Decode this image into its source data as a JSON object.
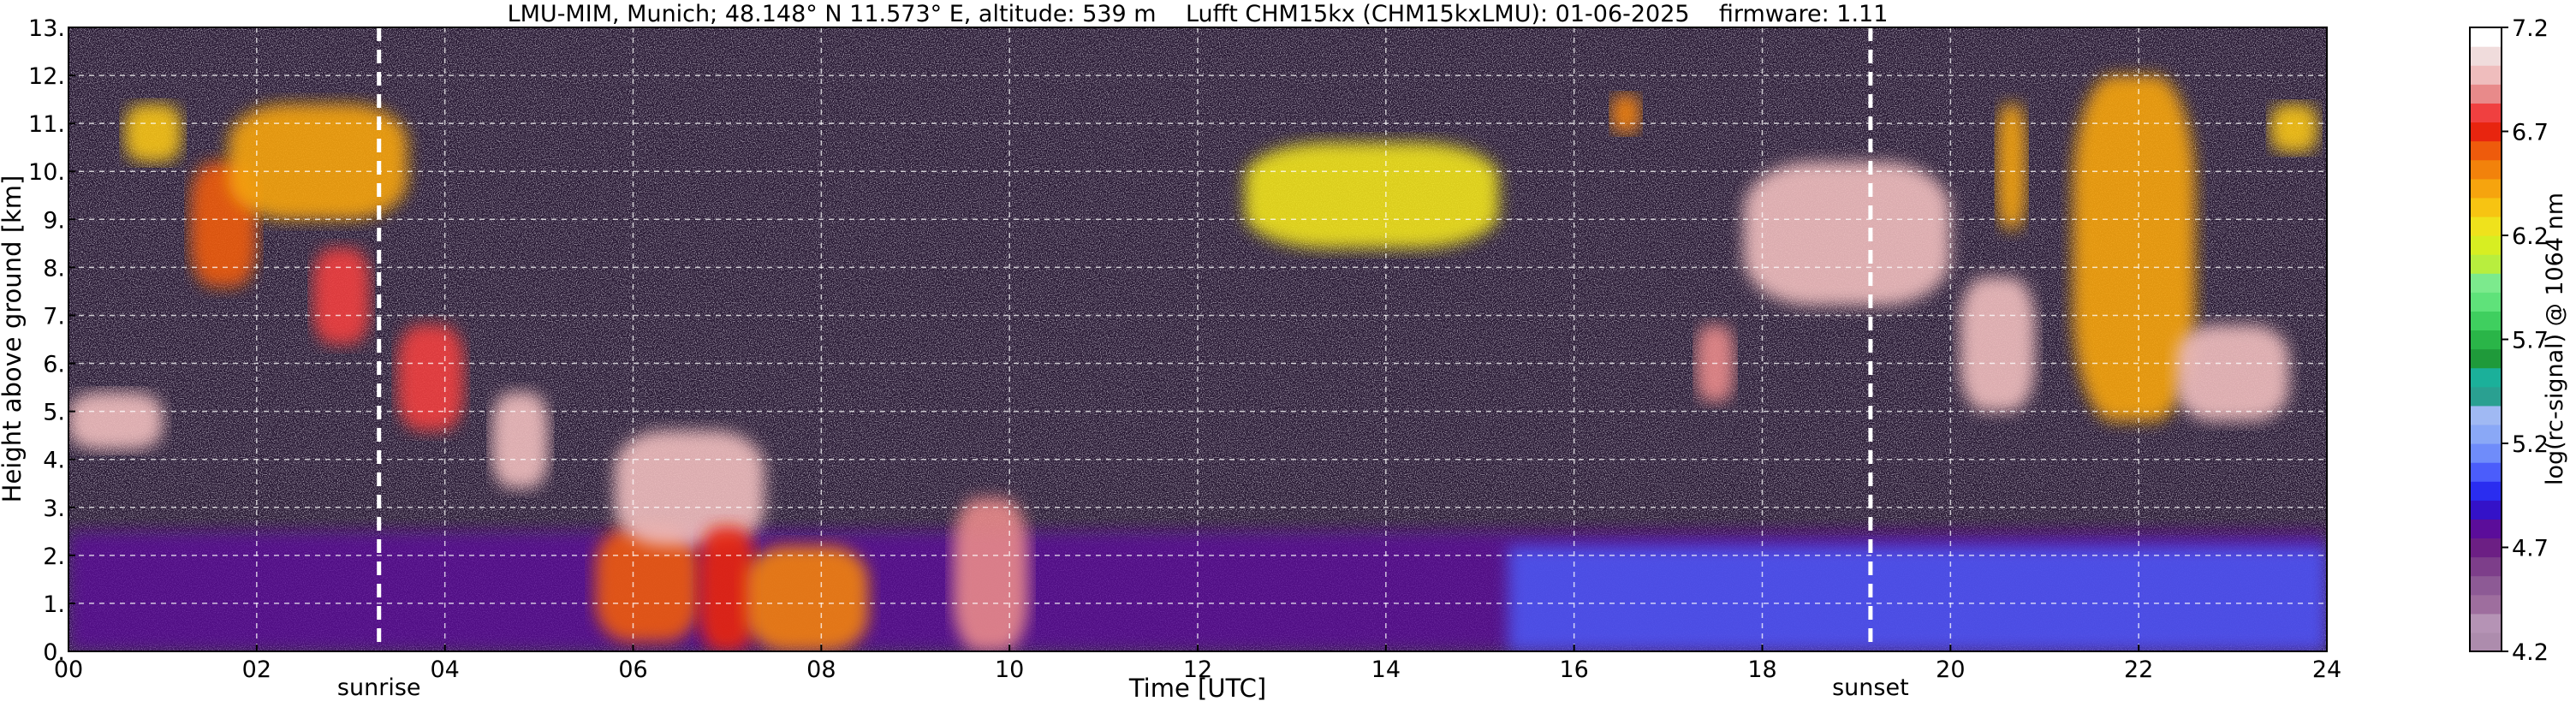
{
  "chart_data": {
    "type": "heatmap",
    "title": "LMU-MIM, Munich; 48.148° N 11.573° E, altitude: 539 m    Lufft CHM15kx (CHM15kxLMU): 01-06-2025    firmware: 1.11",
    "xlabel": "Time [UTC]",
    "ylabel": "Height above ground [km]",
    "colorbar_label": "log(rc-signal) @ 1064 nm",
    "xlim": [
      0,
      24
    ],
    "ylim": [
      0,
      13
    ],
    "x_ticks": [
      0,
      2,
      4,
      6,
      8,
      10,
      12,
      14,
      16,
      18,
      20,
      22,
      24
    ],
    "x_tick_labels": [
      "00",
      "02",
      "04",
      "06",
      "08",
      "10",
      "12",
      "14",
      "16",
      "18",
      "20",
      "22",
      "24"
    ],
    "y_ticks": [
      0,
      1,
      2,
      3,
      4,
      5,
      6,
      7,
      8,
      9,
      10,
      11,
      12,
      13
    ],
    "y_tick_labels": [
      "0.",
      "1.",
      "2.",
      "3.",
      "4.",
      "5.",
      "6.",
      "7.",
      "8.",
      "9.",
      "10.",
      "11.",
      "12.",
      "13."
    ],
    "grid": true,
    "events": [
      {
        "label": "sunrise",
        "time": 3.3
      },
      {
        "label": "sunset",
        "time": 19.15
      }
    ],
    "colorbar": {
      "range": [
        4.2,
        7.2
      ],
      "tick_values": [
        4.2,
        4.7,
        5.2,
        5.7,
        6.2,
        6.7,
        7.2
      ],
      "tick_labels": [
        "4.2",
        "4.7",
        "5.2",
        "5.7",
        "6.2",
        "6.7",
        "7.2"
      ],
      "colors": [
        "#ad8cad",
        "#b593b5",
        "#9e6e9e",
        "#8d5a95",
        "#7d3e8a",
        "#6c1f84",
        "#5b0d9a",
        "#3412c8",
        "#2a2df0",
        "#4b5dfb",
        "#6f8cfa",
        "#8aa8f6",
        "#a0b9f3",
        "#2aa091",
        "#1bb09a",
        "#1f9a3a",
        "#2ab548",
        "#3fcf5f",
        "#5fe27a",
        "#7cea8d",
        "#b8ee3e",
        "#d7ee22",
        "#efe21c",
        "#f7c412",
        "#f6a40e",
        "#f2820b",
        "#ee5b0c",
        "#e8250f",
        "#f04040",
        "#e88a8a",
        "#efbdbd",
        "#f0dcdc",
        "#ffffff"
      ]
    },
    "features": [
      {
        "kind": "aerosol_layer",
        "t0": 0.0,
        "t1": 24.0,
        "h0": 0.0,
        "h1": 2.5,
        "level": 4.8
      },
      {
        "kind": "aerosol_layer",
        "t0": 15.3,
        "t1": 24.0,
        "h0": 0.0,
        "h1": 2.2,
        "level": 5.05
      },
      {
        "kind": "cloud",
        "t0": 0.0,
        "t1": 1.0,
        "h0": 4.2,
        "h1": 5.4,
        "level": 7.0
      },
      {
        "kind": "cloud",
        "t0": 0.6,
        "t1": 1.2,
        "h0": 10.2,
        "h1": 11.4,
        "level": 6.3
      },
      {
        "kind": "cloud",
        "t0": 1.3,
        "t1": 2.0,
        "h0": 7.6,
        "h1": 10.2,
        "level": 6.6
      },
      {
        "kind": "cloud",
        "t0": 1.7,
        "t1": 3.6,
        "h0": 9.0,
        "h1": 11.4,
        "level": 6.4
      },
      {
        "kind": "cloud",
        "t0": 2.6,
        "t1": 3.2,
        "h0": 6.4,
        "h1": 8.4,
        "level": 6.8
      },
      {
        "kind": "cloud",
        "t0": 3.5,
        "t1": 4.2,
        "h0": 4.6,
        "h1": 6.8,
        "level": 6.8
      },
      {
        "kind": "cloud",
        "t0": 4.5,
        "t1": 5.1,
        "h0": 3.4,
        "h1": 5.4,
        "level": 7.0
      },
      {
        "kind": "cloud",
        "t0": 5.6,
        "t1": 6.7,
        "h0": 0.2,
        "h1": 2.6,
        "level": 6.6
      },
      {
        "kind": "cloud",
        "t0": 5.8,
        "t1": 7.4,
        "h0": 2.2,
        "h1": 4.6,
        "level": 7.0
      },
      {
        "kind": "cloud",
        "t0": 6.7,
        "t1": 7.3,
        "h0": 0.0,
        "h1": 2.6,
        "level": 6.7
      },
      {
        "kind": "cloud",
        "t0": 7.2,
        "t1": 8.5,
        "h0": 0.0,
        "h1": 2.2,
        "level": 6.5
      },
      {
        "kind": "cloud",
        "t0": 9.4,
        "t1": 10.2,
        "h0": 0.0,
        "h1": 3.2,
        "level": 6.9
      },
      {
        "kind": "cloud",
        "t0": 12.5,
        "t1": 15.2,
        "h0": 8.4,
        "h1": 10.6,
        "level": 6.2
      },
      {
        "kind": "cloud",
        "t0": 16.4,
        "t1": 16.7,
        "h0": 10.8,
        "h1": 11.6,
        "level": 6.5
      },
      {
        "kind": "cloud",
        "t0": 17.3,
        "t1": 17.7,
        "h0": 5.2,
        "h1": 6.8,
        "level": 6.9
      },
      {
        "kind": "cloud",
        "t0": 17.8,
        "t1": 20.0,
        "h0": 7.2,
        "h1": 10.2,
        "level": 7.0
      },
      {
        "kind": "cloud",
        "t0": 20.1,
        "t1": 20.9,
        "h0": 5.0,
        "h1": 7.8,
        "level": 7.0
      },
      {
        "kind": "cloud",
        "t0": 20.5,
        "t1": 20.8,
        "h0": 8.8,
        "h1": 11.4,
        "level": 6.4
      },
      {
        "kind": "cloud",
        "t0": 21.3,
        "t1": 22.6,
        "h0": 4.8,
        "h1": 12.0,
        "level": 6.4
      },
      {
        "kind": "cloud",
        "t0": 22.4,
        "t1": 23.6,
        "h0": 4.8,
        "h1": 6.8,
        "level": 7.0
      },
      {
        "kind": "cloud",
        "t0": 23.4,
        "t1": 23.9,
        "h0": 10.4,
        "h1": 11.4,
        "level": 6.3
      }
    ]
  }
}
